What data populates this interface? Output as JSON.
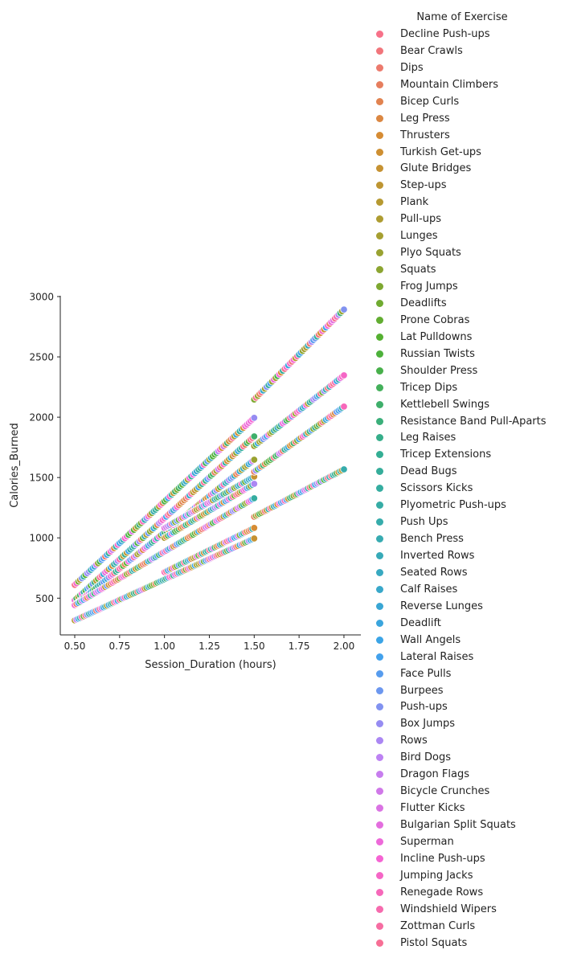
{
  "chart_data": {
    "type": "scatter",
    "title": "",
    "xlabel": "Session_Duration (hours)",
    "ylabel": "Calories_Burned",
    "xlim": [
      0.43,
      2.1
    ],
    "ylim": [
      200,
      3010
    ],
    "xticks": [
      "0.50",
      "0.75",
      "1.00",
      "1.25",
      "1.50",
      "1.75",
      "2.00"
    ],
    "yticks": [
      "500",
      "1000",
      "1500",
      "2000",
      "2500",
      "3000"
    ],
    "grid": false,
    "legend_placement": "outside-right",
    "hue_palette": "husl",
    "palette_anchors": [
      "#f77189",
      "#d58c32",
      "#a4a031",
      "#50b131",
      "#34ae91",
      "#37abb4",
      "#3ba3ec",
      "#bb83f4",
      "#f564d4",
      "#f77189"
    ],
    "point_segments": [
      {
        "x": [
          0.5,
          1.5
        ],
        "y": [
          610,
          1995
        ]
      },
      {
        "x": [
          1.5,
          2.0
        ],
        "y": [
          2147,
          2893
        ]
      },
      {
        "x": [
          0.5,
          1.5
        ],
        "y": [
          483,
          1841
        ]
      },
      {
        "x": [
          0.5,
          1.5
        ],
        "y": [
          443,
          1648
        ]
      },
      {
        "x": [
          0.5,
          1.5
        ],
        "y": [
          443,
          1328
        ]
      },
      {
        "x": [
          1.0,
          1.5
        ],
        "y": [
          1082,
          1508
        ]
      },
      {
        "x": [
          1.0,
          1.5
        ],
        "y": [
          1000,
          1448
        ]
      },
      {
        "x": [
          0.5,
          1.5
        ],
        "y": [
          316,
          995
        ]
      },
      {
        "x": [
          1.0,
          1.5
        ],
        "y": [
          716,
          1082
        ]
      },
      {
        "x": [
          1.5,
          2.0
        ],
        "y": [
          1761,
          2347
        ]
      },
      {
        "x": [
          1.5,
          2.0
        ],
        "y": [
          1548,
          2088
        ]
      },
      {
        "x": [
          1.5,
          2.0
        ],
        "y": [
          1175,
          1568
        ]
      }
    ],
    "legend": {
      "title": "Name of Exercise",
      "entries": [
        "Decline Push-ups",
        "Bear Crawls",
        "Dips",
        "Mountain Climbers",
        "Bicep Curls",
        "Leg Press",
        "Thrusters",
        "Turkish Get-ups",
        "Glute Bridges",
        "Step-ups",
        "Plank",
        "Pull-ups",
        "Lunges",
        "Plyo Squats",
        "Squats",
        "Frog Jumps",
        "Deadlifts",
        "Prone Cobras",
        "Lat Pulldowns",
        "Russian Twists",
        "Shoulder Press",
        "Tricep Dips",
        "Kettlebell Swings",
        "Resistance Band Pull-Aparts",
        "Leg Raises",
        "Tricep Extensions",
        "Dead Bugs",
        "Scissors Kicks",
        "Plyometric Push-ups",
        "Push Ups",
        "Bench Press",
        "Inverted Rows",
        "Seated Rows",
        "Calf Raises",
        "Reverse Lunges",
        "Deadlift",
        "Wall Angels",
        "Lateral Raises",
        "Face Pulls",
        "Burpees",
        "Push-ups",
        "Box Jumps",
        "Rows",
        "Bird Dogs",
        "Dragon Flags",
        "Bicycle Crunches",
        "Flutter Kicks",
        "Bulgarian Split Squats",
        "Superman",
        "Incline Push-ups",
        "Jumping Jacks",
        "Renegade Rows",
        "Windshield Wipers",
        "Zottman Curls",
        "Pistol Squats"
      ]
    }
  }
}
